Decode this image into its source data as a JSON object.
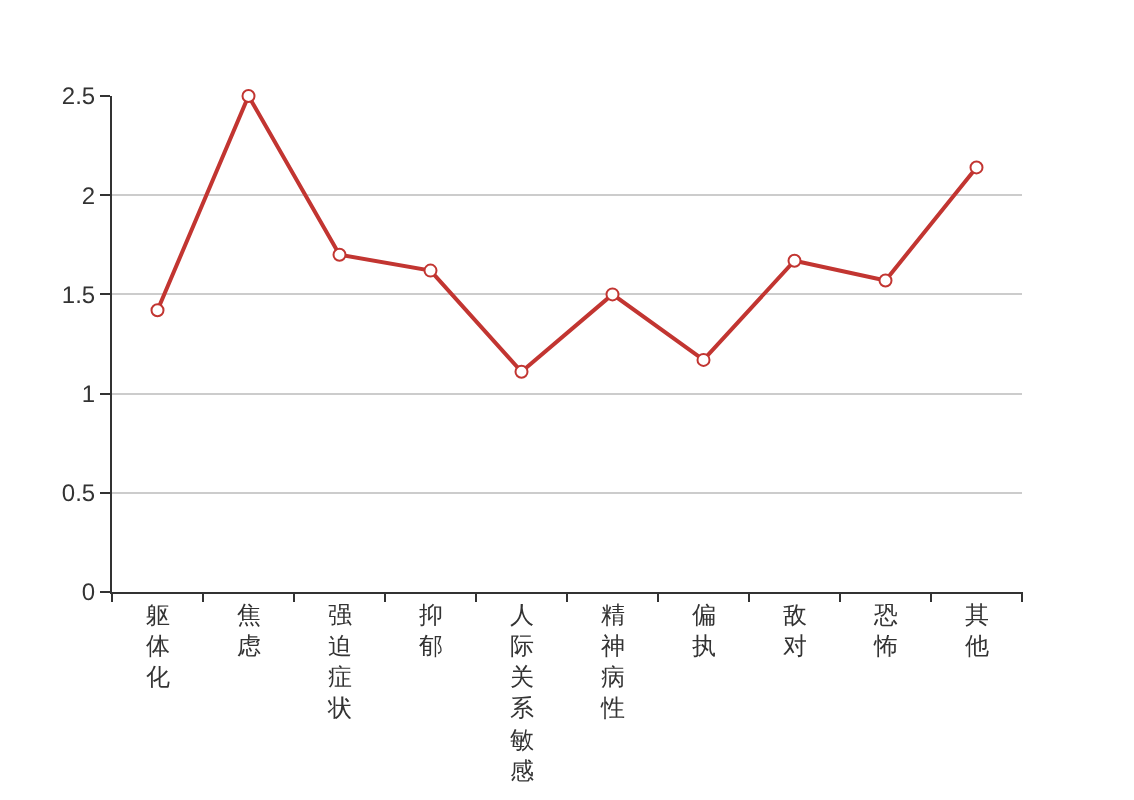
{
  "chart_data": {
    "type": "line",
    "categories": [
      "躯体化",
      "焦虑",
      "强迫症状",
      "抑郁",
      "人际关系敏感",
      "精神病性",
      "偏执",
      "敌对",
      "恐怖",
      "其他"
    ],
    "values": [
      1.42,
      2.5,
      1.7,
      1.62,
      1.11,
      1.5,
      1.17,
      1.67,
      1.57,
      2.14
    ],
    "color": "#c23531",
    "ylim": [
      0,
      2.5
    ],
    "yticks": [
      0,
      0.5,
      1,
      1.5,
      2,
      2.5
    ],
    "grid": "y",
    "marker": "circle"
  }
}
